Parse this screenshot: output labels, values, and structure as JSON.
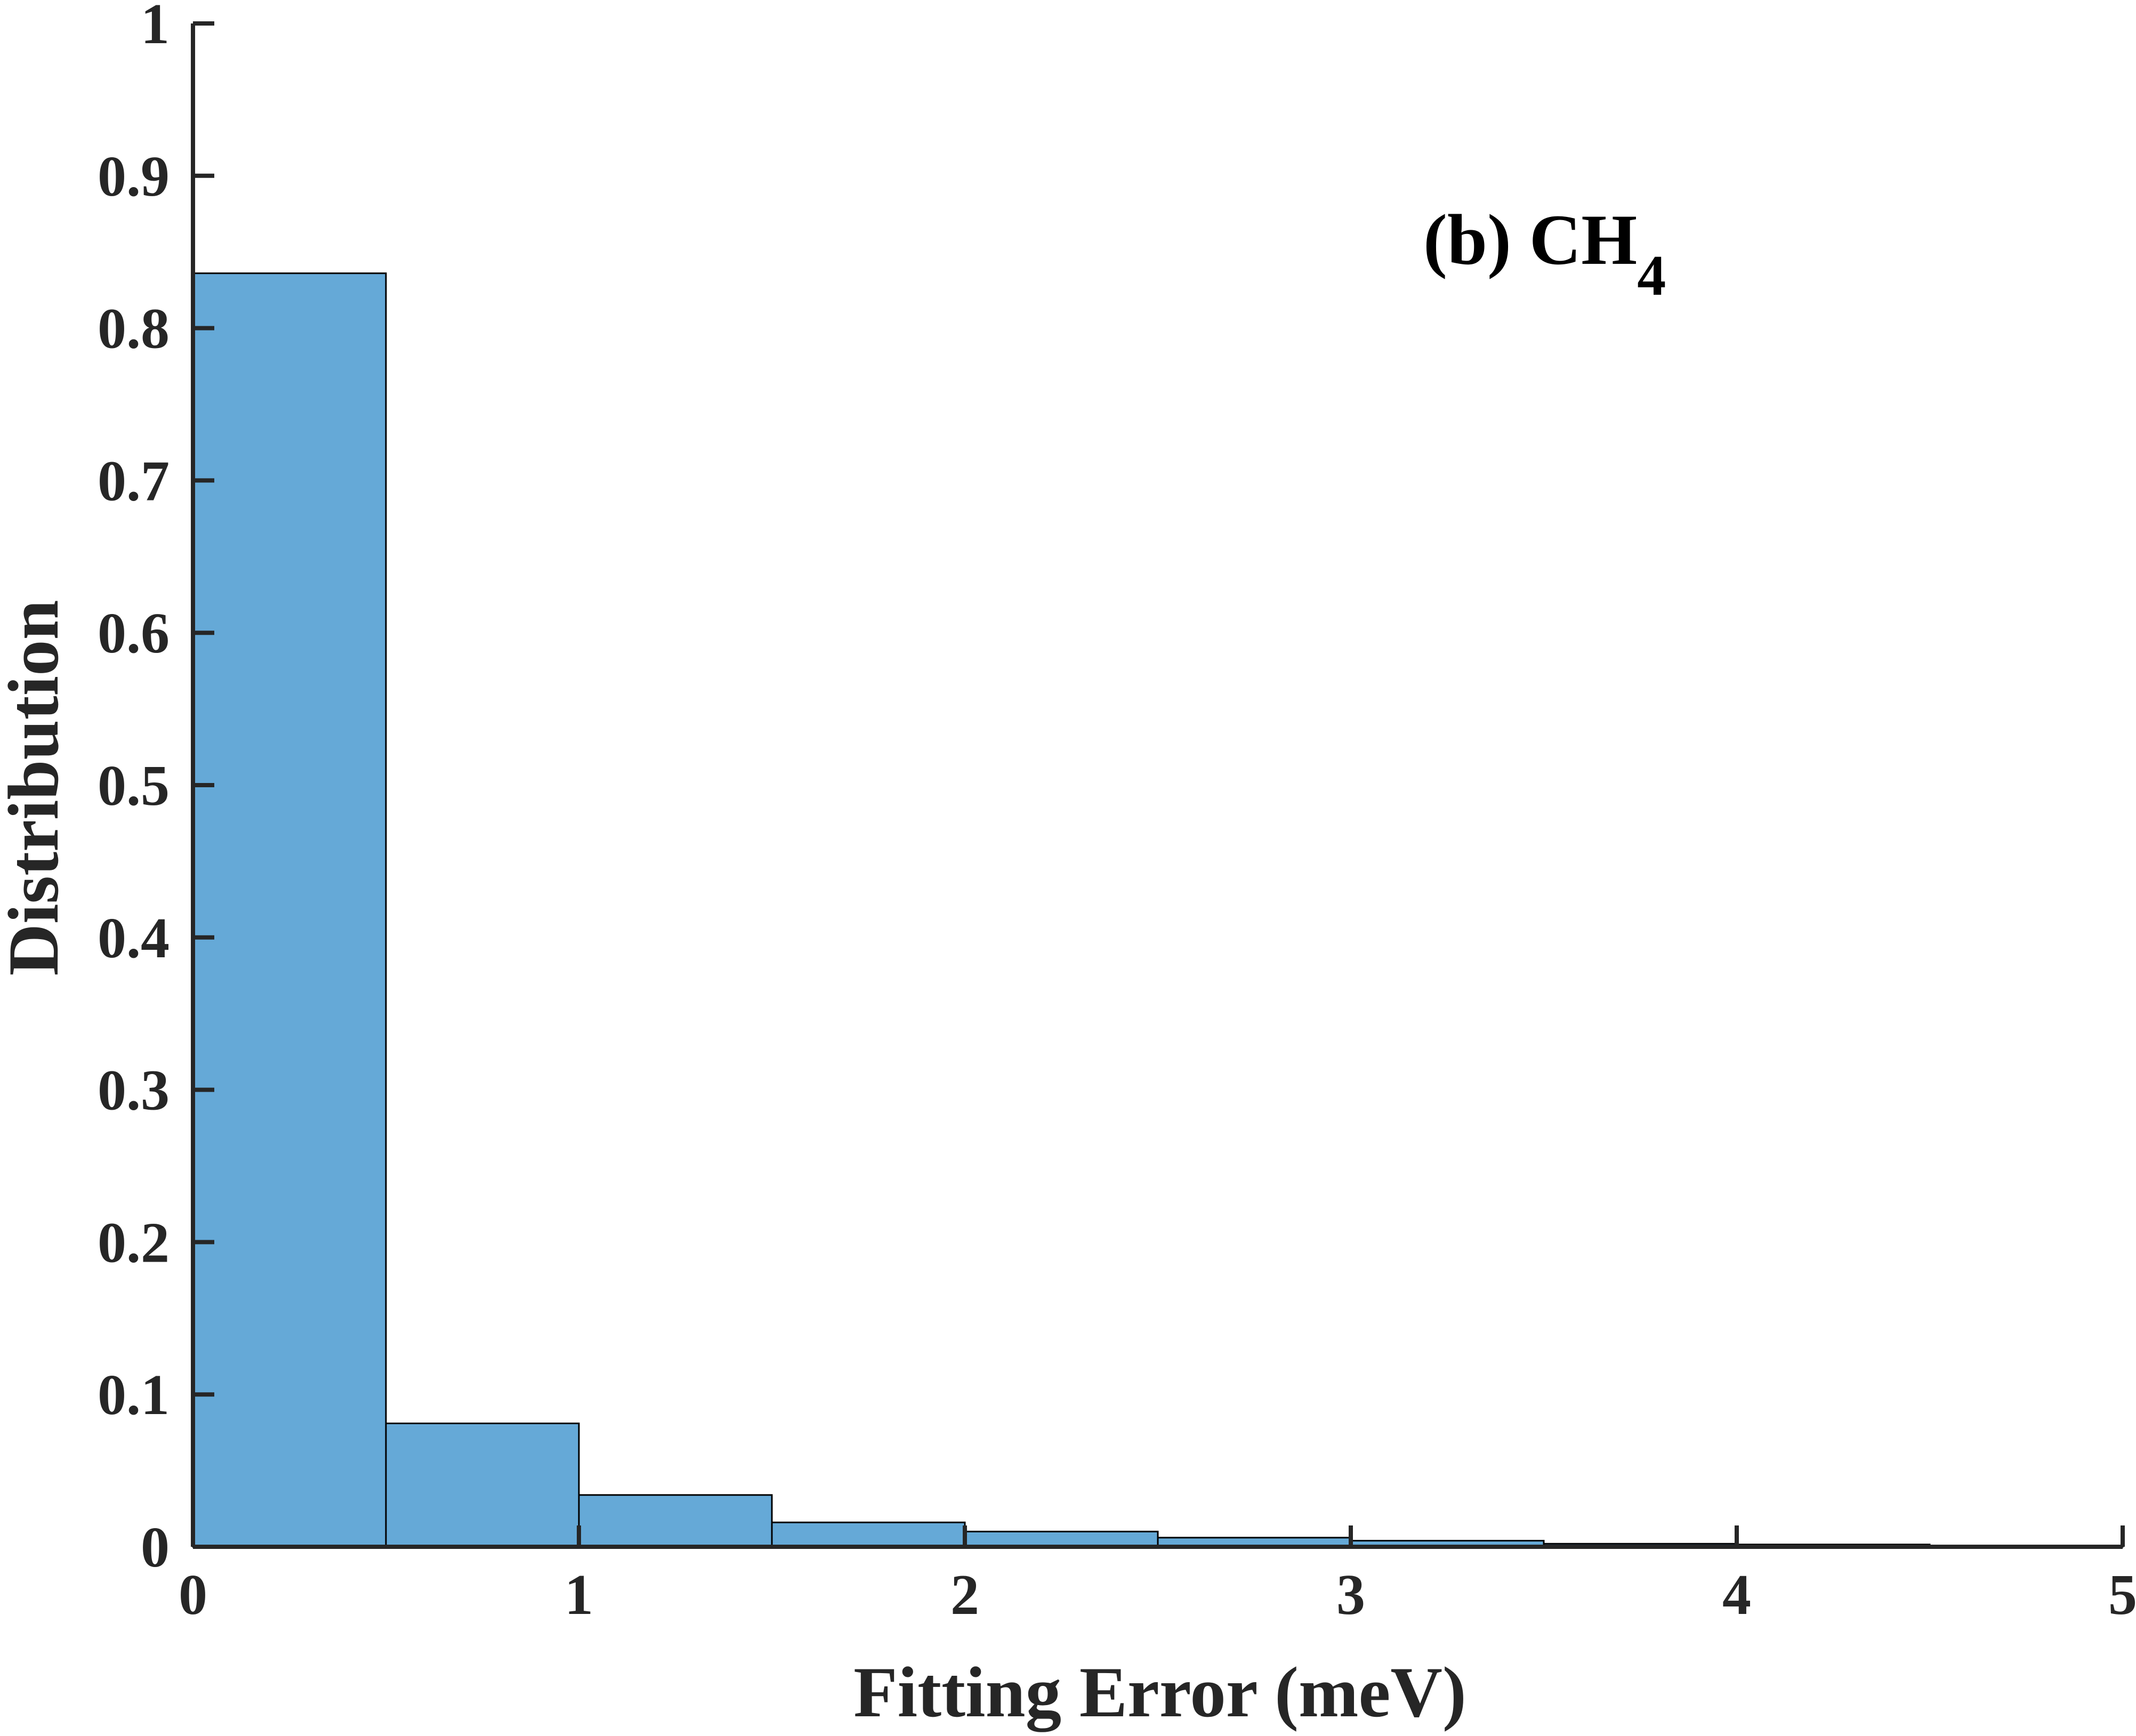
{
  "chart_data": {
    "type": "bar",
    "bin_edges": [
      0,
      0.5,
      1,
      1.5,
      2,
      2.5,
      3,
      3.5,
      4,
      4.5,
      5
    ],
    "values": [
      0.836,
      0.081,
      0.034,
      0.016,
      0.01,
      0.006,
      0.004,
      0.002,
      0.0015,
      0.0005
    ],
    "xlabel": "Fitting Error (meV)",
    "ylabel": "Distribution",
    "annotation": {
      "text": "(b) CH",
      "subscript": "4"
    },
    "xlim": [
      0,
      5
    ],
    "ylim": [
      0,
      1
    ],
    "xticks": [
      0,
      1,
      2,
      3,
      4,
      5
    ],
    "xtick_labels": [
      "0",
      "1",
      "2",
      "3",
      "4",
      "5"
    ],
    "yticks": [
      0,
      0.1,
      0.2,
      0.3,
      0.4,
      0.5,
      0.6,
      0.7,
      0.8,
      0.9,
      1
    ],
    "ytick_labels": [
      "0",
      "0.1",
      "0.2",
      "0.3",
      "0.4",
      "0.5",
      "0.6",
      "0.7",
      "0.8",
      "0.9",
      "1"
    ],
    "grid": false,
    "colors": {
      "bar_fill": "#65a9d7",
      "bar_edge": "#000000",
      "axis": "#262626"
    }
  }
}
